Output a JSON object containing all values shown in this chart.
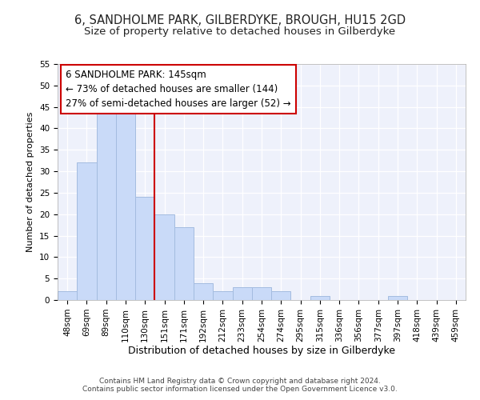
{
  "title": "6, SANDHOLME PARK, GILBERDYKE, BROUGH, HU15 2GD",
  "subtitle": "Size of property relative to detached houses in Gilberdyke",
  "xlabel": "Distribution of detached houses by size in Gilberdyke",
  "ylabel": "Number of detached properties",
  "bar_values": [
    2,
    32,
    44,
    44,
    24,
    20,
    17,
    4,
    2,
    3,
    3,
    2,
    0,
    1,
    0,
    0,
    0,
    1,
    0,
    0,
    0
  ],
  "bar_labels": [
    "48sqm",
    "69sqm",
    "89sqm",
    "110sqm",
    "130sqm",
    "151sqm",
    "171sqm",
    "192sqm",
    "212sqm",
    "233sqm",
    "254sqm",
    "274sqm",
    "295sqm",
    "315sqm",
    "336sqm",
    "356sqm",
    "377sqm",
    "397sqm",
    "418sqm",
    "439sqm",
    "459sqm"
  ],
  "bar_color": "#c9daf8",
  "bar_edge_color": "#a4bce0",
  "highlight_line_color": "#cc0000",
  "annotation_box_text": "6 SANDHOLME PARK: 145sqm\n← 73% of detached houses are smaller (144)\n27% of semi-detached houses are larger (52) →",
  "annotation_box_color": "#cc0000",
  "ylim": [
    0,
    55
  ],
  "yticks": [
    0,
    5,
    10,
    15,
    20,
    25,
    30,
    35,
    40,
    45,
    50,
    55
  ],
  "background_color": "#eef1fb",
  "footer_line1": "Contains HM Land Registry data © Crown copyright and database right 2024.",
  "footer_line2": "Contains public sector information licensed under the Open Government Licence v3.0.",
  "title_fontsize": 10.5,
  "subtitle_fontsize": 9.5,
  "xlabel_fontsize": 9,
  "ylabel_fontsize": 8,
  "tick_fontsize": 7.5,
  "footer_fontsize": 6.5,
  "annotation_fontsize": 8.5
}
